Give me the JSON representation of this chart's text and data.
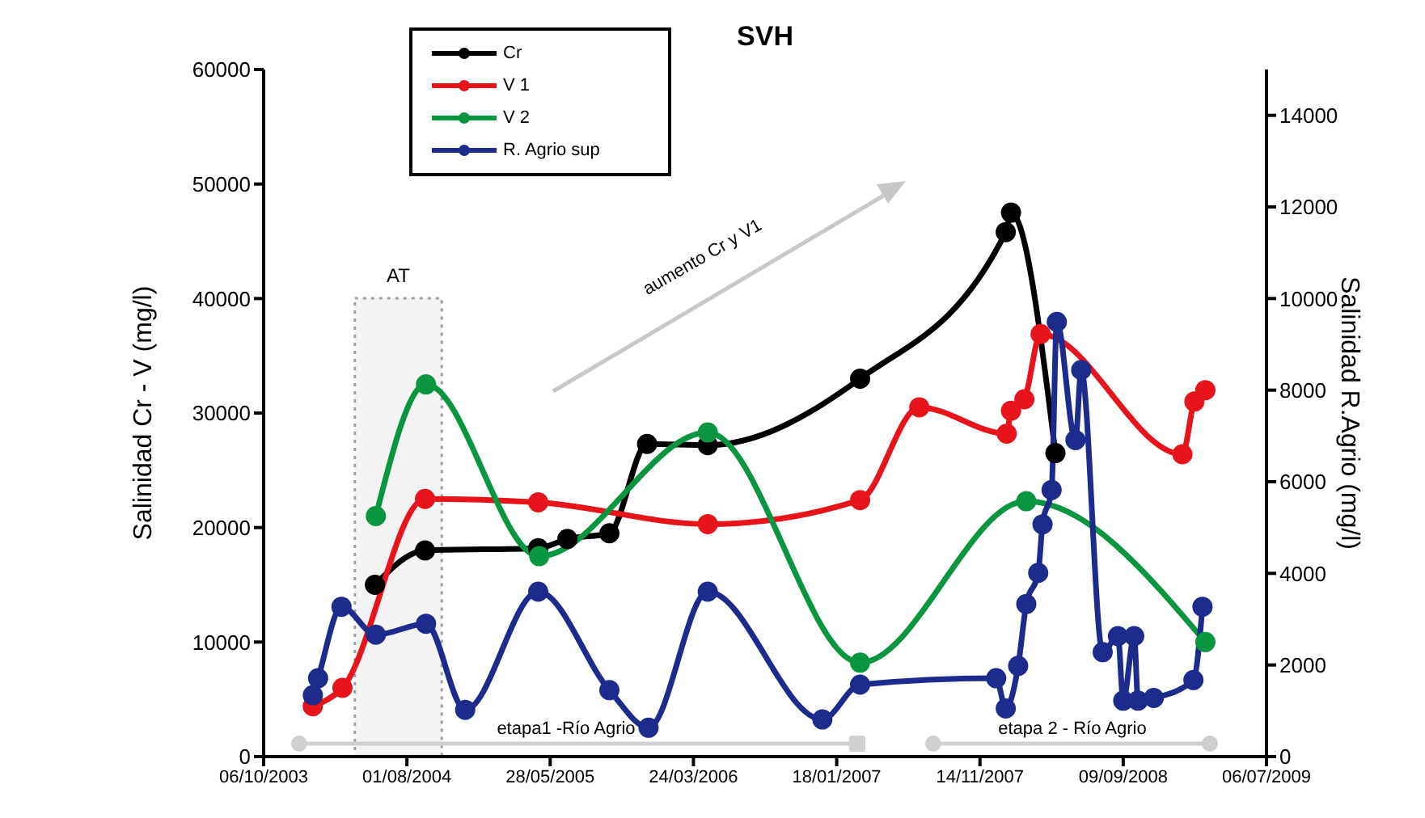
{
  "chart_data": {
    "type": "line",
    "title": "SVH",
    "ylabel": "Salinidad Cr - V (mg/l)",
    "y2label": "Salinidad R.Agrio (mg/l)",
    "annotations": [
      "aumento Cr y V1",
      "etapa1 -Río Agrio",
      "etapa 2 - Río Agrio"
    ],
    "xlim": [
      "2003-10-06",
      "2009-07-06"
    ],
    "xticks": [
      {
        "value": "2003-10-06",
        "label": "06/10/2003"
      },
      {
        "value": "2004-08-01",
        "label": "01/08/2004"
      },
      {
        "value": "2005-05-28",
        "label": "28/05/2005"
      },
      {
        "value": "2006-03-24",
        "label": "24/03/2006"
      },
      {
        "value": "2007-01-18",
        "label": "18/01/2007"
      },
      {
        "value": "2007-11-14",
        "label": "14/11/2007"
      },
      {
        "value": "2008-09-09",
        "label": "09/09/2008"
      },
      {
        "value": "2009-07-06",
        "label": "06/07/2009"
      }
    ],
    "ylim": [
      0,
      60000
    ],
    "yticks": [
      0,
      10000,
      20000,
      30000,
      40000,
      50000,
      60000
    ],
    "y2lim": [
      0,
      15000
    ],
    "y2ticks": [
      0,
      2000,
      4000,
      6000,
      8000,
      10000,
      12000,
      14000
    ],
    "bands": [
      {
        "axis": "x",
        "from": "2004-04-14",
        "to": "2004-10-13",
        "label": "AT",
        "color": "#a0a0a0"
      }
    ],
    "legend": "top left",
    "grid": false,
    "marker": "circle",
    "line_style": "solid",
    "series": [
      {
        "name": "Cr",
        "color": "#000000",
        "x": [
          "2004-05-26",
          "2004-09-08",
          "2005-05-03",
          "2005-07-03",
          "2005-09-29",
          "2005-12-17",
          "2006-04-23",
          "2007-03-08",
          "2008-01-07",
          "2008-01-18",
          "2008-04-20"
        ],
        "values": [
          15000,
          18000,
          18200,
          19000,
          19500,
          27300,
          27200,
          33000,
          45800,
          47500,
          26500
        ]
      },
      {
        "name": "V 1",
        "color": "#e8141c",
        "x": [
          "2004-01-17",
          "2004-03-19",
          "2004-09-08",
          "2005-05-03",
          "2006-04-23",
          "2007-03-08",
          "2007-07-10",
          "2008-01-09",
          "2008-01-18",
          "2008-02-15",
          "2008-03-20",
          "2009-01-11",
          "2009-02-05",
          "2009-02-28"
        ],
        "values": [
          4400,
          6000,
          22500,
          22200,
          20300,
          22400,
          30500,
          28200,
          30200,
          31200,
          36900,
          26400,
          31000,
          32000
        ]
      },
      {
        "name": "V 2",
        "color": "#0a9640",
        "x": [
          "2004-05-28",
          "2004-09-10",
          "2005-05-05",
          "2006-04-23",
          "2007-03-08",
          "2008-02-19",
          "2009-02-28"
        ],
        "values": [
          21000,
          32500,
          17500,
          28300,
          8200,
          22300,
          10000
        ]
      },
      {
        "name": "R. Agrio sup",
        "color": "#1c2b8c",
        "axis": "y2",
        "x": [
          "2004-01-17",
          "2004-01-28",
          "2004-03-17",
          "2004-05-28",
          "2004-09-10",
          "2004-12-01",
          "2005-05-03",
          "2005-09-29",
          "2005-12-20",
          "2006-04-23",
          "2006-12-19",
          "2007-03-08",
          "2007-12-18",
          "2008-01-07",
          "2008-02-02",
          "2008-02-19",
          "2008-03-15",
          "2008-03-24",
          "2008-04-12",
          "2008-04-23",
          "2008-06-01",
          "2008-06-13",
          "2008-07-28",
          "2008-08-29",
          "2008-09-09",
          "2008-10-02",
          "2008-10-10",
          "2008-11-12",
          "2009-02-03",
          "2009-02-22"
        ],
        "values": [
          1340,
          1710,
          3270,
          2660,
          2900,
          1020,
          3600,
          1450,
          630,
          3600,
          810,
          1570,
          1710,
          1050,
          1980,
          3330,
          4010,
          5070,
          5820,
          9490,
          6910,
          8440,
          2280,
          2630,
          1220,
          2630,
          1220,
          1280,
          1670,
          3270
        ]
      }
    ]
  }
}
